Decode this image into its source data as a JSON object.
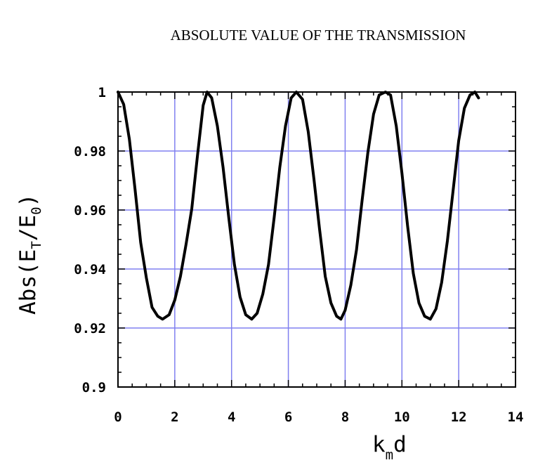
{
  "chart_data": {
    "type": "line",
    "title": "ABSOLUTE VALUE OF THE TRANSMISSION",
    "xlabel": {
      "main": "k",
      "sub": "m",
      "tail": "d"
    },
    "ylabel": {
      "prefix": "Abs(E",
      "sub1": "T",
      "mid": "/E",
      "sub2": "0",
      "suffix": ")"
    },
    "xlim": [
      0,
      14
    ],
    "ylim": [
      0.9,
      1.0
    ],
    "xticks": [
      0,
      2,
      4,
      6,
      8,
      10,
      12,
      14
    ],
    "xtick_labels": [
      "0",
      "2",
      "4",
      "6",
      "8",
      "10",
      "12",
      "14"
    ],
    "yticks": [
      0.9,
      0.92,
      0.94,
      0.96,
      0.98,
      1.0
    ],
    "ytick_labels": [
      "0.9",
      "0.92",
      "0.94",
      "0.96",
      "0.98",
      "1"
    ],
    "grid": true,
    "grid_color": "#8080f0",
    "line_color": "#000000",
    "series": [
      {
        "x": [
          0.0,
          0.2,
          0.4,
          0.6,
          0.8,
          1.0,
          1.2,
          1.4,
          1.57,
          1.8,
          2.0,
          2.2,
          2.4,
          2.6,
          2.8,
          3.0,
          3.14,
          3.3,
          3.5,
          3.7,
          3.9,
          4.1,
          4.3,
          4.5,
          4.71,
          4.9,
          5.1,
          5.3,
          5.5,
          5.7,
          5.9,
          6.1,
          6.28,
          6.5,
          6.7,
          6.9,
          7.1,
          7.3,
          7.5,
          7.7,
          7.85,
          8.0,
          8.2,
          8.4,
          8.6,
          8.8,
          9.0,
          9.2,
          9.42,
          9.6,
          9.8,
          10.0,
          10.2,
          10.4,
          10.6,
          10.8,
          11.0,
          11.2,
          11.4,
          11.6,
          11.8,
          12.0,
          12.2,
          12.4,
          12.57,
          12.7
        ],
        "y": [
          1.0,
          0.9958,
          0.984,
          0.967,
          0.949,
          0.937,
          0.927,
          0.924,
          0.923,
          0.9245,
          0.9295,
          0.9375,
          0.9485,
          0.9605,
          0.9785,
          0.9955,
          1.0,
          0.998,
          0.9885,
          0.9745,
          0.9575,
          0.9415,
          0.9305,
          0.9245,
          0.923,
          0.925,
          0.9315,
          0.9415,
          0.9575,
          0.9745,
          0.9885,
          0.998,
          1.0,
          0.9975,
          0.9865,
          0.9705,
          0.9535,
          0.9375,
          0.9285,
          0.924,
          0.923,
          0.926,
          0.9345,
          0.9465,
          0.9635,
          0.9795,
          0.9925,
          0.999,
          1.0,
          0.999,
          0.9885,
          0.9725,
          0.9545,
          0.9385,
          0.9285,
          0.924,
          0.923,
          0.9265,
          0.9355,
          0.9495,
          0.9665,
          0.9835,
          0.9945,
          0.999,
          1.0,
          0.998
        ]
      }
    ]
  }
}
